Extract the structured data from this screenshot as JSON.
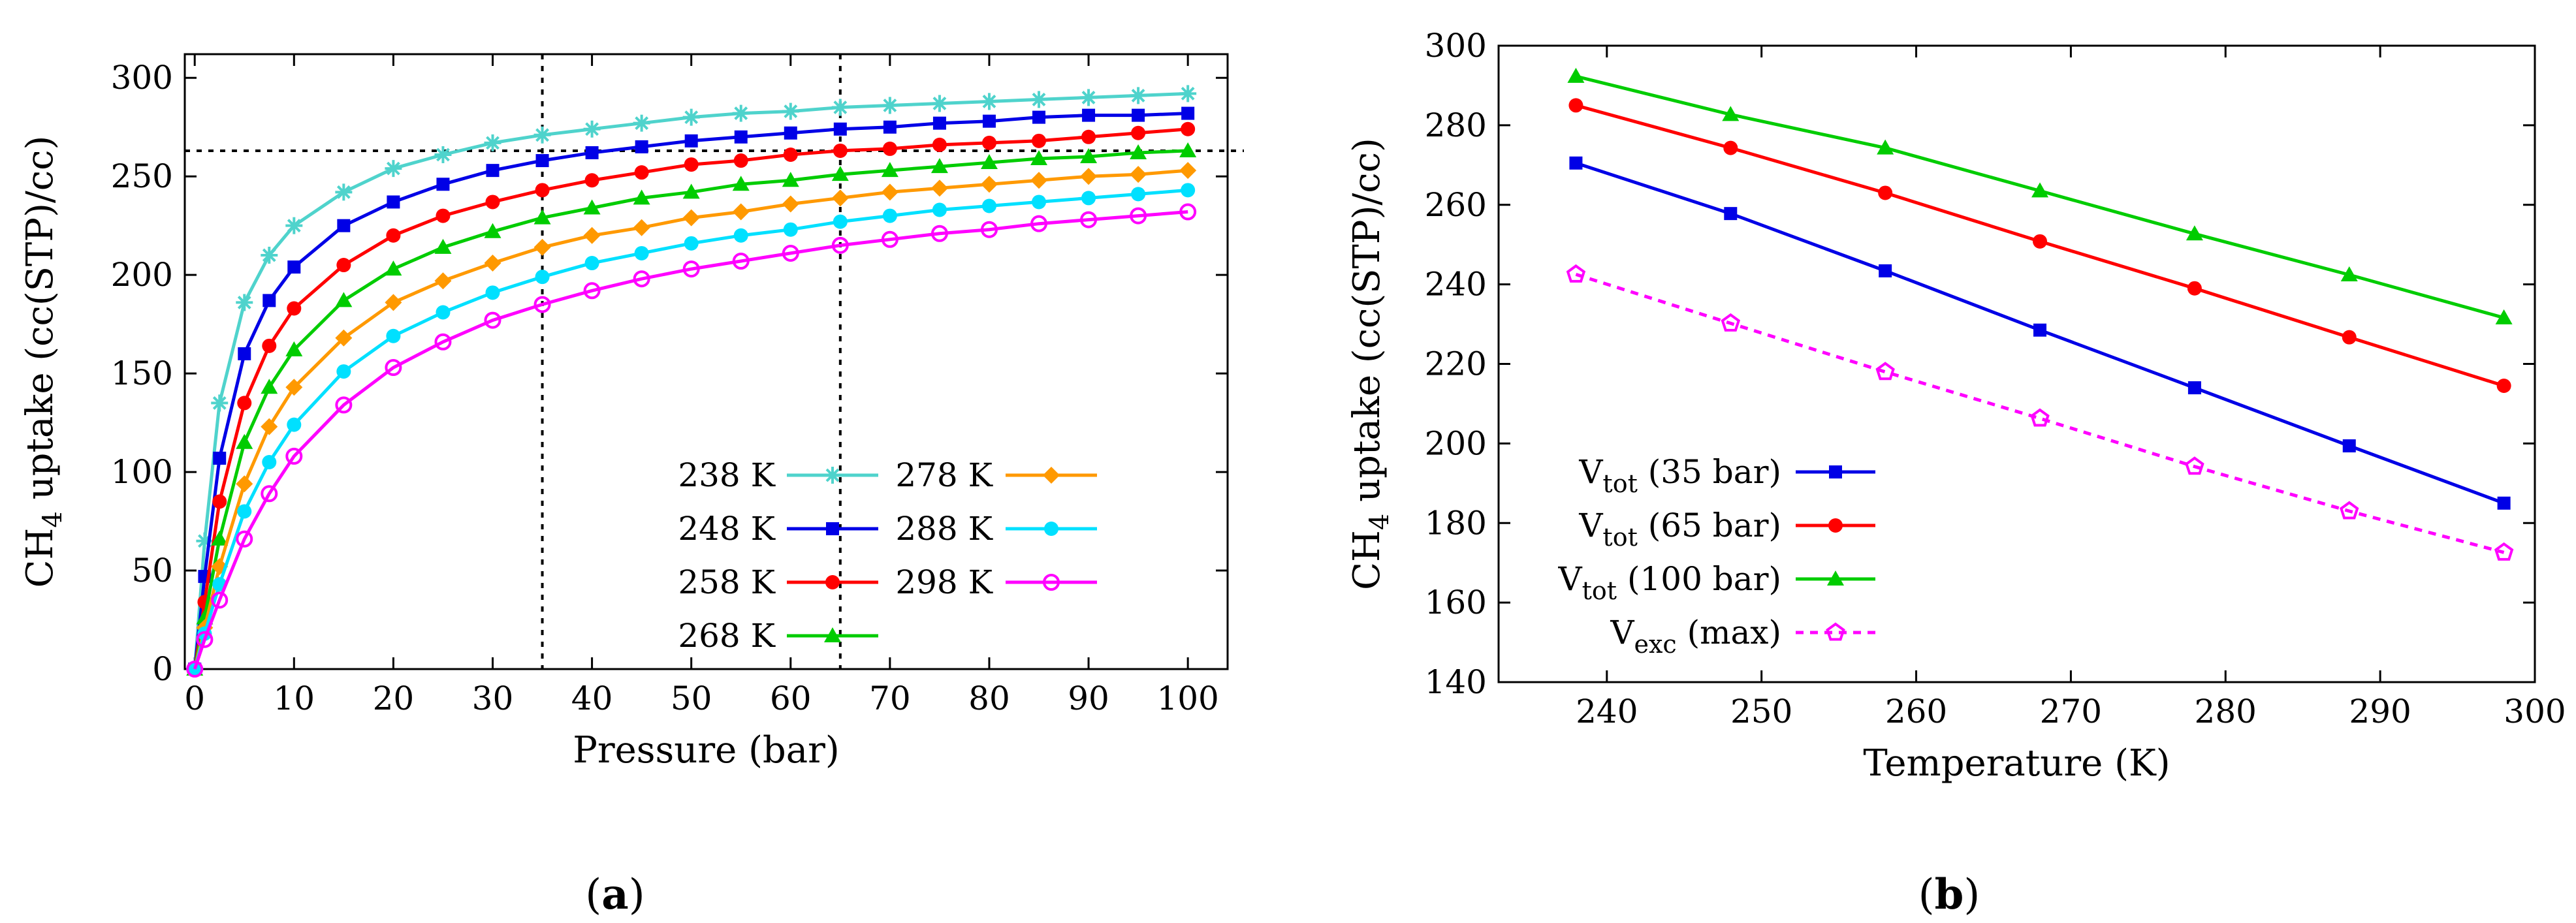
{
  "panels": [
    {
      "label_open": "(",
      "label_letter": "a",
      "label_close": ")"
    },
    {
      "label_open": "(",
      "label_letter": "b",
      "label_close": ")"
    }
  ],
  "chart_data": [
    {
      "type": "line",
      "xlabel": "Pressure (bar)",
      "ylabel_parts": [
        "CH",
        "4",
        " uptake (cc(STP)/cc)"
      ],
      "xlim": [
        -1,
        104
      ],
      "ylim": [
        0,
        312
      ],
      "xticks": [
        0,
        10,
        20,
        30,
        40,
        50,
        60,
        70,
        80,
        90,
        100
      ],
      "yticks": [
        0,
        50,
        100,
        150,
        200,
        250,
        300
      ],
      "x": [
        0,
        1,
        2.5,
        5,
        7.5,
        10,
        15,
        20,
        25,
        30,
        35,
        40,
        45,
        50,
        55,
        60,
        65,
        70,
        75,
        80,
        85,
        90,
        95,
        100
      ],
      "reference_lines": {
        "vertical": [
          35,
          65
        ],
        "horizontal": [
          263
        ]
      },
      "legend_position": "bottom-right, two columns",
      "series": [
        {
          "name": "238 K",
          "color": "#4fd3cc",
          "marker": "asterisk",
          "values": [
            0,
            65,
            135,
            186,
            210,
            225,
            242,
            254,
            261,
            267,
            271,
            274,
            277,
            280,
            282,
            283,
            285,
            286,
            287,
            288,
            289,
            290,
            291,
            292
          ]
        },
        {
          "name": "248 K",
          "color": "#0000e6",
          "marker": "square",
          "values": [
            0,
            47,
            107,
            160,
            187,
            204,
            225,
            237,
            246,
            253,
            258,
            262,
            265,
            268,
            270,
            272,
            274,
            275,
            277,
            278,
            280,
            281,
            281,
            282
          ]
        },
        {
          "name": "258 K",
          "color": "#ff0000",
          "marker": "circle",
          "values": [
            0,
            34,
            85,
            135,
            164,
            183,
            205,
            220,
            230,
            237,
            243,
            248,
            252,
            256,
            258,
            261,
            263,
            264,
            266,
            267,
            268,
            270,
            272,
            274
          ]
        },
        {
          "name": "268 K",
          "color": "#00cc00",
          "marker": "triangle",
          "values": [
            0,
            26,
            66,
            115,
            143,
            162,
            187,
            203,
            214,
            222,
            229,
            234,
            239,
            242,
            246,
            248,
            251,
            253,
            255,
            257,
            259,
            260,
            262,
            263
          ]
        },
        {
          "name": "278 K",
          "color": "#ff9900",
          "marker": "diamond",
          "values": [
            0,
            21,
            52,
            94,
            123,
            143,
            168,
            186,
            197,
            206,
            214,
            220,
            224,
            229,
            232,
            236,
            239,
            242,
            244,
            246,
            248,
            250,
            251,
            253
          ]
        },
        {
          "name": "288 K",
          "color": "#00e0ff",
          "marker": "filled-circle",
          "values": [
            0,
            18,
            43,
            80,
            105,
            124,
            151,
            169,
            181,
            191,
            199,
            206,
            211,
            216,
            220,
            223,
            227,
            230,
            233,
            235,
            237,
            239,
            241,
            243
          ]
        },
        {
          "name": "298 K",
          "color": "#ff00ff",
          "marker": "open-circle",
          "values": [
            0,
            15,
            35,
            66,
            89,
            108,
            134,
            153,
            166,
            177,
            185,
            192,
            198,
            203,
            207,
            211,
            215,
            218,
            221,
            223,
            226,
            228,
            230,
            232
          ]
        }
      ]
    },
    {
      "type": "line",
      "xlabel": "Temperature (K)",
      "ylabel_parts": [
        "CH",
        "4",
        " uptake (cc(STP)/cc)"
      ],
      "xlim": [
        233,
        300
      ],
      "ylim": [
        140,
        300
      ],
      "xticks": [
        240,
        250,
        260,
        270,
        280,
        290,
        300
      ],
      "yticks": [
        140,
        160,
        180,
        200,
        220,
        240,
        260,
        280,
        300
      ],
      "x": [
        238,
        248,
        258,
        268,
        278,
        288,
        298
      ],
      "legend_position": "bottom-left",
      "series": [
        {
          "name_main": "V",
          "name_sub": "tot",
          "name_rest": " (35 bar)",
          "color": "#0000e6",
          "marker": "square",
          "dash": false,
          "values": [
            270.5,
            257.8,
            243.4,
            228.5,
            214.0,
            199.4,
            185.0
          ]
        },
        {
          "name_main": "V",
          "name_sub": "tot",
          "name_rest": " (65 bar)",
          "color": "#ff0000",
          "marker": "circle",
          "dash": false,
          "values": [
            285.0,
            274.3,
            263.0,
            250.8,
            239.0,
            226.7,
            214.5
          ]
        },
        {
          "name_main": "V",
          "name_sub": "tot",
          "name_rest": " (100 bar)",
          "color": "#00cc00",
          "marker": "triangle",
          "dash": false,
          "values": [
            292.3,
            282.7,
            274.3,
            263.5,
            252.7,
            242.4,
            231.6
          ]
        },
        {
          "name_main": "V",
          "name_sub": "exc",
          "name_rest": " (max)",
          "color": "#ff00ff",
          "marker": "open-pentagon",
          "dash": true,
          "values": [
            242.5,
            230.2,
            218.0,
            206.3,
            194.2,
            183.0,
            172.6
          ]
        }
      ]
    }
  ]
}
